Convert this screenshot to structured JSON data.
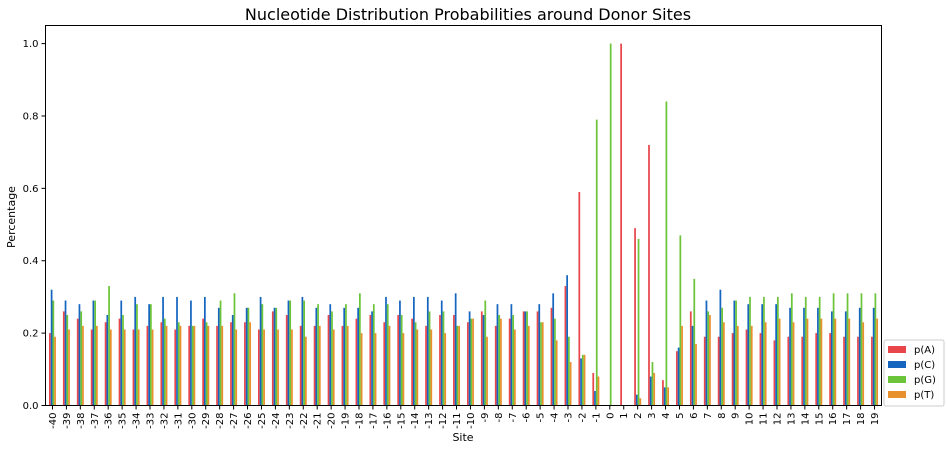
{
  "chart_data": {
    "type": "bar",
    "title": "Nucleotide Distribution Probabilities around Donor Sites",
    "xlabel": "Site",
    "ylabel": "Percentage",
    "ylim": [
      0,
      1.05
    ],
    "yticks": [
      "0.0",
      "0.2",
      "0.4",
      "0.6",
      "0.8",
      "1.0"
    ],
    "grid": false,
    "legend_position": "bottom-right-outside",
    "categories": [
      "-40",
      "-39",
      "-38",
      "-37",
      "-36",
      "-35",
      "-34",
      "-33",
      "-32",
      "-31",
      "-30",
      "-29",
      "-28",
      "-27",
      "-26",
      "-25",
      "-24",
      "-23",
      "-22",
      "-21",
      "-20",
      "-19",
      "-18",
      "-17",
      "-16",
      "-15",
      "-14",
      "-13",
      "-12",
      "-11",
      "-10",
      "-9",
      "-8",
      "-7",
      "-6",
      "-5",
      "-4",
      "-3",
      "-2",
      "-1",
      "0",
      "1",
      "2",
      "3",
      "4",
      "5",
      "6",
      "7",
      "8",
      "9",
      "10",
      "11",
      "12",
      "13",
      "14",
      "15",
      "16",
      "17",
      "18",
      "19"
    ],
    "series": [
      {
        "name": "p(A)",
        "color": "#e8464a",
        "values": [
          0.2,
          0.26,
          0.24,
          0.21,
          0.23,
          0.24,
          0.21,
          0.22,
          0.23,
          0.21,
          0.22,
          0.24,
          0.22,
          0.23,
          0.23,
          0.21,
          0.26,
          0.25,
          0.22,
          0.22,
          0.25,
          0.22,
          0.24,
          0.25,
          0.23,
          0.25,
          0.24,
          0.22,
          0.25,
          0.25,
          0.23,
          0.26,
          0.22,
          0.24,
          0.26,
          0.26,
          0.27,
          0.33,
          0.59,
          0.09,
          0.0,
          1.0,
          0.49,
          0.72,
          0.07,
          0.15,
          0.26,
          0.19,
          0.19,
          0.2,
          0.21,
          0.2,
          0.18,
          0.19,
          0.19,
          0.2,
          0.2,
          0.19,
          0.19,
          0.19
        ]
      },
      {
        "name": "p(C)",
        "color": "#1666c0",
        "values": [
          0.32,
          0.29,
          0.28,
          0.29,
          0.25,
          0.29,
          0.3,
          0.28,
          0.3,
          0.3,
          0.29,
          0.3,
          0.27,
          0.25,
          0.27,
          0.3,
          0.27,
          0.29,
          0.3,
          0.27,
          0.28,
          0.27,
          0.27,
          0.26,
          0.3,
          0.29,
          0.3,
          0.3,
          0.29,
          0.31,
          0.26,
          0.25,
          0.28,
          0.28,
          0.26,
          0.28,
          0.31,
          0.36,
          0.13,
          0.04,
          0.0,
          0.0,
          0.03,
          0.08,
          0.05,
          0.16,
          0.22,
          0.29,
          0.32,
          0.29,
          0.28,
          0.28,
          0.28,
          0.27,
          0.27,
          0.27,
          0.26,
          0.26,
          0.27,
          0.27
        ]
      },
      {
        "name": "p(G)",
        "color": "#6cc43a",
        "values": [
          0.29,
          0.25,
          0.26,
          0.29,
          0.33,
          0.25,
          0.28,
          0.28,
          0.24,
          0.23,
          0.22,
          0.23,
          0.29,
          0.31,
          0.27,
          0.28,
          0.27,
          0.29,
          0.29,
          0.28,
          0.26,
          0.28,
          0.31,
          0.28,
          0.28,
          0.25,
          0.23,
          0.26,
          0.26,
          0.22,
          0.24,
          0.29,
          0.25,
          0.25,
          0.26,
          0.23,
          0.24,
          0.19,
          0.14,
          0.79,
          1.0,
          0.0,
          0.46,
          0.12,
          0.84,
          0.47,
          0.35,
          0.26,
          0.27,
          0.29,
          0.3,
          0.3,
          0.3,
          0.31,
          0.3,
          0.3,
          0.31,
          0.31,
          0.31,
          0.31
        ]
      },
      {
        "name": "p(T)",
        "color": "#e8902c",
        "values": [
          0.19,
          0.21,
          0.22,
          0.22,
          0.21,
          0.21,
          0.21,
          0.21,
          0.22,
          0.22,
          0.22,
          0.22,
          0.22,
          0.21,
          0.23,
          0.21,
          0.21,
          0.21,
          0.19,
          0.22,
          0.21,
          0.22,
          0.2,
          0.2,
          0.22,
          0.2,
          0.21,
          0.21,
          0.2,
          0.22,
          0.24,
          0.19,
          0.24,
          0.21,
          0.22,
          0.23,
          0.18,
          0.12,
          0.14,
          0.08,
          0.0,
          0.0,
          0.02,
          0.09,
          0.05,
          0.22,
          0.17,
          0.25,
          0.23,
          0.22,
          0.22,
          0.23,
          0.24,
          0.23,
          0.24,
          0.24,
          0.24,
          0.24,
          0.23,
          0.24
        ]
      }
    ]
  }
}
